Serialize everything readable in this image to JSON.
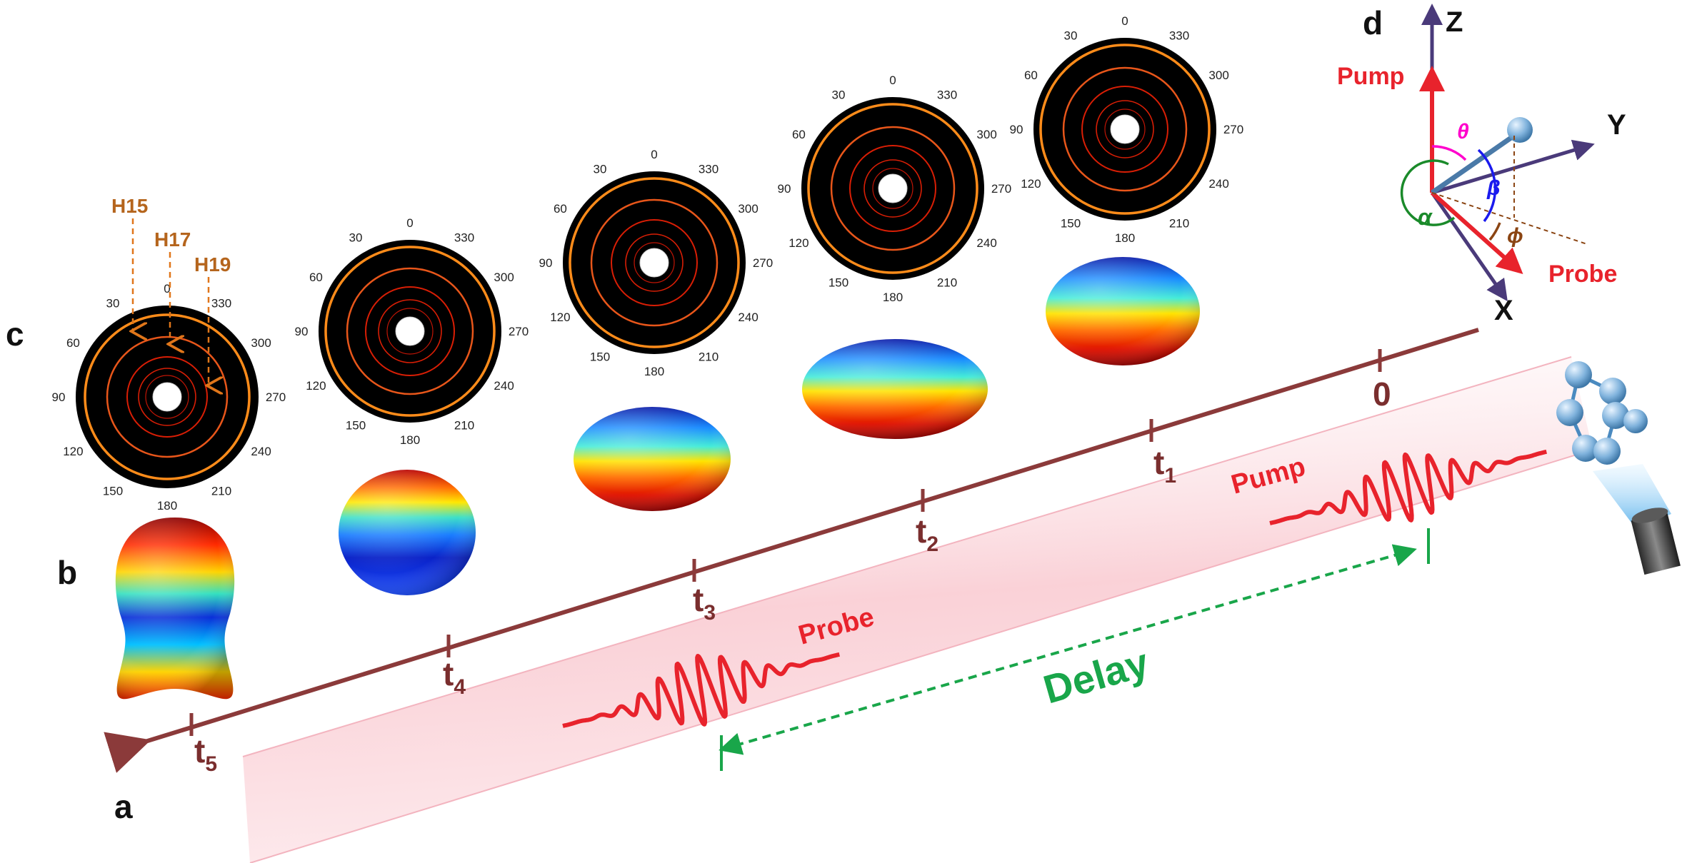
{
  "panels": {
    "a": "a",
    "b": "b",
    "c": "c",
    "d": "d"
  },
  "timeline": {
    "ticks": [
      {
        "base": "0",
        "sub": ""
      },
      {
        "base": "t",
        "sub": "1"
      },
      {
        "base": "t",
        "sub": "2"
      },
      {
        "base": "t",
        "sub": "3"
      },
      {
        "base": "t",
        "sub": "4"
      },
      {
        "base": "t",
        "sub": "5"
      }
    ]
  },
  "beam": {
    "pump": "Pump",
    "probe": "Probe",
    "delay": "Delay"
  },
  "polar": {
    "angles": [
      "0",
      "30",
      "60",
      "90",
      "120",
      "150",
      "180",
      "210",
      "240",
      "270",
      "300",
      "330"
    ],
    "harmonics": [
      "H15",
      "H17",
      "H19"
    ]
  },
  "frame": {
    "z": "Z",
    "y": "Y",
    "x": "X",
    "pump": "Pump",
    "probe": "Probe",
    "theta": "θ",
    "beta": "β",
    "alpha": "α",
    "phi": "ϕ"
  },
  "colors": {
    "timeline": "#8b3a3a",
    "pulse": "#e8232c",
    "delay": "#19a64a",
    "ring_outer": "#ff8c1a",
    "ring_inner": "#d81e05",
    "axes": "#4a3a7a"
  }
}
